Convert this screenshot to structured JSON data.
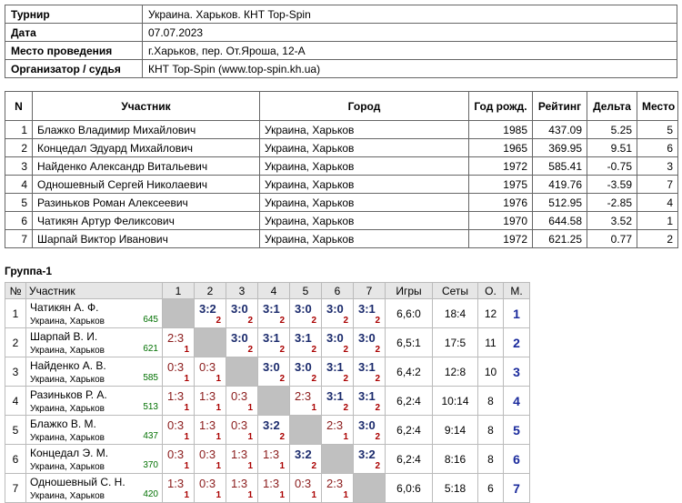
{
  "info": {
    "rows": [
      [
        "Турнир",
        "Украина. Харьков. КНТ Top-Spin"
      ],
      [
        "Дата",
        "07.07.2023"
      ],
      [
        "Место проведения",
        "г.Харьков, пер. От.Яроша, 12-А"
      ],
      [
        "Организатор / судья",
        "КНТ Top-Spin (www.top-spin.kh.ua)"
      ]
    ]
  },
  "participants": {
    "header": [
      "N",
      "Участник",
      "Город",
      "Год рожд.",
      "Рейтинг",
      "Дельта",
      "Место"
    ],
    "rows": [
      [
        "1",
        "Блажко Владимир Михайлович",
        "Украина, Харьков",
        "1985",
        "437.09",
        "5.25",
        "5"
      ],
      [
        "2",
        "Концедал Эдуард Михайлович",
        "Украина, Харьков",
        "1965",
        "369.95",
        "9.51",
        "6"
      ],
      [
        "3",
        "Найденко Александр Витальевич",
        "Украина, Харьков",
        "1972",
        "585.41",
        "-0.75",
        "3"
      ],
      [
        "4",
        "Одношевный Сергей Николаевич",
        "Украина, Харьков",
        "1975",
        "419.76",
        "-3.59",
        "7"
      ],
      [
        "5",
        "Разиньков Роман Алексеевич",
        "Украина, Харьков",
        "1976",
        "512.95",
        "-2.85",
        "4"
      ],
      [
        "6",
        "Чатикян Артур Феликсович",
        "Украина, Харьков",
        "1970",
        "644.58",
        "3.52",
        "1"
      ],
      [
        "7",
        "Шарпай Виктор Иванович",
        "Украина, Харьков",
        "1972",
        "621.25",
        "0.77",
        "2"
      ]
    ]
  },
  "group": {
    "title": "Группа-1",
    "header": [
      "№",
      "Участник",
      "1",
      "2",
      "3",
      "4",
      "5",
      "6",
      "7",
      "Игры",
      "Сеты",
      "О.",
      "М."
    ],
    "rows": [
      {
        "n": "1",
        "name": "Чатикян А. Ф.",
        "city": "Украина, Харьков",
        "rating": "645",
        "results": [
          null,
          {
            "score": "3:2",
            "pts": "2"
          },
          {
            "score": "3:0",
            "pts": "2"
          },
          {
            "score": "3:1",
            "pts": "2"
          },
          {
            "score": "3:0",
            "pts": "2"
          },
          {
            "score": "3:0",
            "pts": "2"
          },
          {
            "score": "3:1",
            "pts": "2"
          }
        ],
        "games": "6,6:0",
        "sets": "18:4",
        "points": "12",
        "place": "1"
      },
      {
        "n": "2",
        "name": "Шарпай В. И.",
        "city": "Украина, Харьков",
        "rating": "621",
        "results": [
          {
            "score": "2:3",
            "pts": "1"
          },
          null,
          {
            "score": "3:0",
            "pts": "2"
          },
          {
            "score": "3:1",
            "pts": "2"
          },
          {
            "score": "3:1",
            "pts": "2"
          },
          {
            "score": "3:0",
            "pts": "2"
          },
          {
            "score": "3:0",
            "pts": "2"
          }
        ],
        "games": "6,5:1",
        "sets": "17:5",
        "points": "11",
        "place": "2"
      },
      {
        "n": "3",
        "name": "Найденко А. В.",
        "city": "Украина, Харьков",
        "rating": "585",
        "results": [
          {
            "score": "0:3",
            "pts": "1"
          },
          {
            "score": "0:3",
            "pts": "1"
          },
          null,
          {
            "score": "3:0",
            "pts": "2"
          },
          {
            "score": "3:0",
            "pts": "2"
          },
          {
            "score": "3:1",
            "pts": "2"
          },
          {
            "score": "3:1",
            "pts": "2"
          }
        ],
        "games": "6,4:2",
        "sets": "12:8",
        "points": "10",
        "place": "3"
      },
      {
        "n": "4",
        "name": "Разиньков Р. А.",
        "city": "Украина, Харьков",
        "rating": "513",
        "results": [
          {
            "score": "1:3",
            "pts": "1"
          },
          {
            "score": "1:3",
            "pts": "1"
          },
          {
            "score": "0:3",
            "pts": "1"
          },
          null,
          {
            "score": "2:3",
            "pts": "1"
          },
          {
            "score": "3:1",
            "pts": "2"
          },
          {
            "score": "3:1",
            "pts": "2"
          }
        ],
        "games": "6,2:4",
        "sets": "10:14",
        "points": "8",
        "place": "4"
      },
      {
        "n": "5",
        "name": "Блажко В. М.",
        "city": "Украина, Харьков",
        "rating": "437",
        "results": [
          {
            "score": "0:3",
            "pts": "1"
          },
          {
            "score": "1:3",
            "pts": "1"
          },
          {
            "score": "0:3",
            "pts": "1"
          },
          {
            "score": "3:2",
            "pts": "2"
          },
          null,
          {
            "score": "2:3",
            "pts": "1"
          },
          {
            "score": "3:0",
            "pts": "2"
          }
        ],
        "games": "6,2:4",
        "sets": "9:14",
        "points": "8",
        "place": "5"
      },
      {
        "n": "6",
        "name": "Концедал Э. М.",
        "city": "Украина, Харьков",
        "rating": "370",
        "results": [
          {
            "score": "0:3",
            "pts": "1"
          },
          {
            "score": "0:3",
            "pts": "1"
          },
          {
            "score": "1:3",
            "pts": "1"
          },
          {
            "score": "1:3",
            "pts": "1"
          },
          {
            "score": "3:2",
            "pts": "2"
          },
          null,
          {
            "score": "3:2",
            "pts": "2"
          }
        ],
        "games": "6,2:4",
        "sets": "8:16",
        "points": "8",
        "place": "6"
      },
      {
        "n": "7",
        "name": "Одношевный С. Н.",
        "city": "Украина, Харьков",
        "rating": "420",
        "results": [
          {
            "score": "1:3",
            "pts": "1"
          },
          {
            "score": "0:3",
            "pts": "1"
          },
          {
            "score": "1:3",
            "pts": "1"
          },
          {
            "score": "1:3",
            "pts": "1"
          },
          {
            "score": "0:3",
            "pts": "1"
          },
          {
            "score": "2:3",
            "pts": "1"
          },
          null
        ],
        "games": "6,0:6",
        "sets": "5:18",
        "points": "6",
        "place": "7"
      }
    ]
  }
}
